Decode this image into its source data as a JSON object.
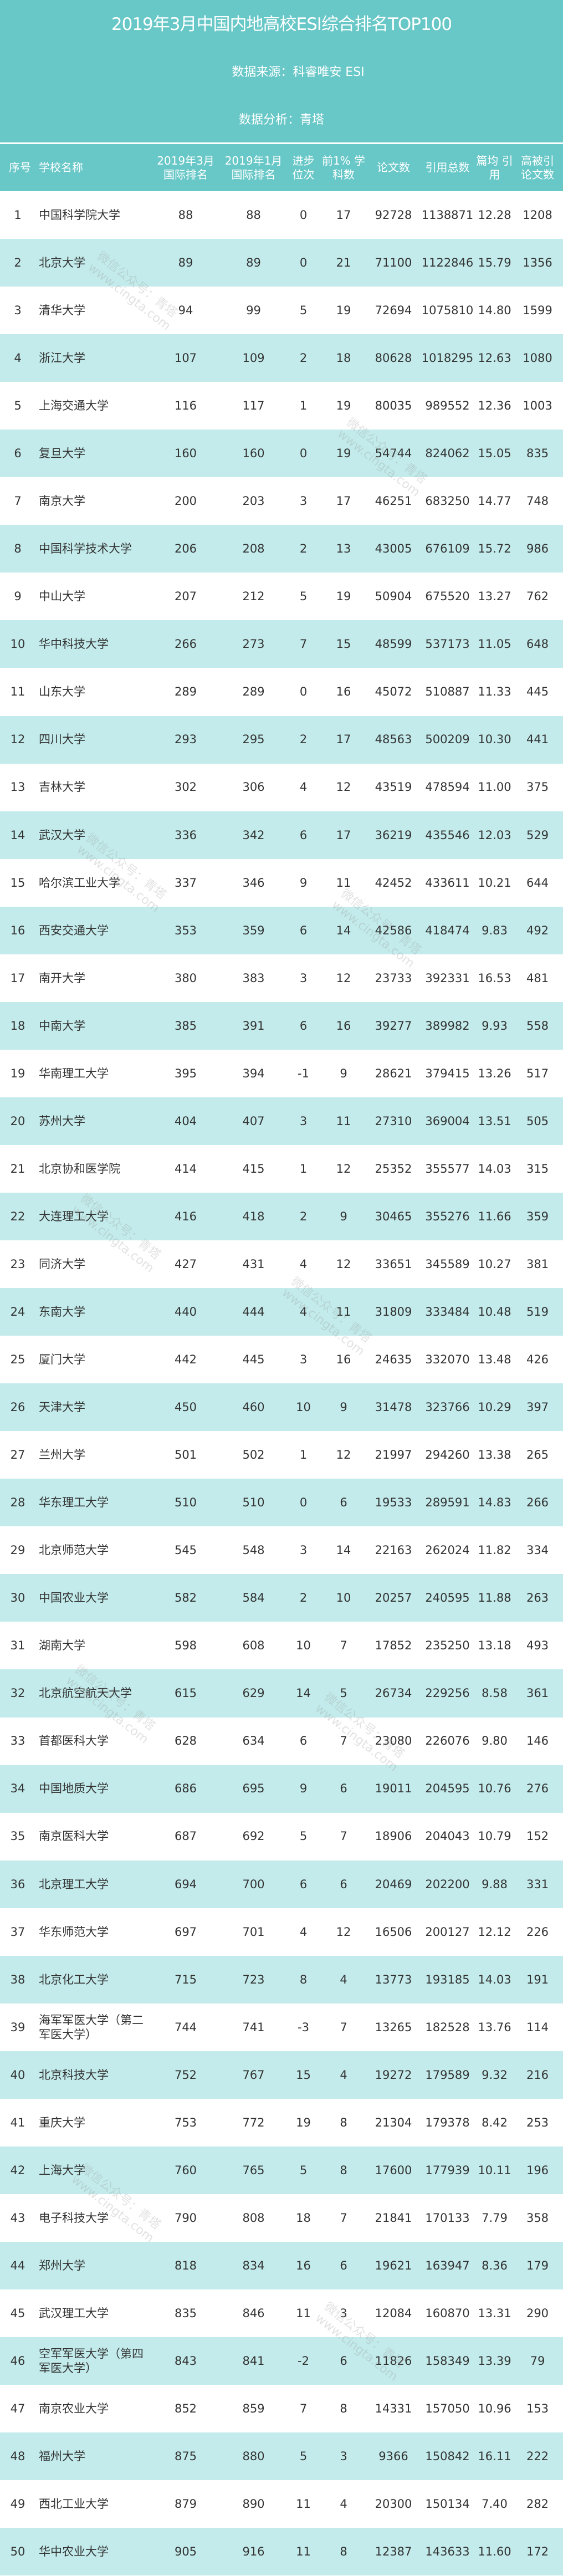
{
  "header": {
    "title": "2019年3月中国内地高校ESI综合排名TOP100",
    "source": "数据来源：科睿唯安 ESI",
    "analysis": "数据分析：青塔"
  },
  "colors": {
    "band": "#68C7C7",
    "row_alt": "#C3EBEB"
  },
  "watermark": [
    "微信公众号：青塔",
    "www.cingta.com"
  ],
  "columns": [
    "序号",
    "学校名称",
    "2019年3月 国际排名",
    "2019年1月 国际排名",
    "进步 位次",
    "前1% 学科数",
    "论文数",
    "引用总数",
    "篇均 引用",
    "高被引 论文数"
  ],
  "rows": [
    [
      "1",
      "中国科学院大学",
      "88",
      "88",
      "0",
      "17",
      "92728",
      "1138871",
      "12.28",
      "1208"
    ],
    [
      "2",
      "北京大学",
      "89",
      "89",
      "0",
      "21",
      "71100",
      "1122846",
      "15.79",
      "1356"
    ],
    [
      "3",
      "清华大学",
      "94",
      "99",
      "5",
      "19",
      "72694",
      "1075810",
      "14.80",
      "1599"
    ],
    [
      "4",
      "浙江大学",
      "107",
      "109",
      "2",
      "18",
      "80628",
      "1018295",
      "12.63",
      "1080"
    ],
    [
      "5",
      "上海交通大学",
      "116",
      "117",
      "1",
      "19",
      "80035",
      "989552",
      "12.36",
      "1003"
    ],
    [
      "6",
      "复旦大学",
      "160",
      "160",
      "0",
      "19",
      "54744",
      "824062",
      "15.05",
      "835"
    ],
    [
      "7",
      "南京大学",
      "200",
      "203",
      "3",
      "17",
      "46251",
      "683250",
      "14.77",
      "748"
    ],
    [
      "8",
      "中国科学技术大学",
      "206",
      "208",
      "2",
      "13",
      "43005",
      "676109",
      "15.72",
      "986"
    ],
    [
      "9",
      "中山大学",
      "207",
      "212",
      "5",
      "19",
      "50904",
      "675520",
      "13.27",
      "762"
    ],
    [
      "10",
      "华中科技大学",
      "266",
      "273",
      "7",
      "15",
      "48599",
      "537173",
      "11.05",
      "648"
    ],
    [
      "11",
      "山东大学",
      "289",
      "289",
      "0",
      "16",
      "45072",
      "510887",
      "11.33",
      "445"
    ],
    [
      "12",
      "四川大学",
      "293",
      "295",
      "2",
      "17",
      "48563",
      "500209",
      "10.30",
      "441"
    ],
    [
      "13",
      "吉林大学",
      "302",
      "306",
      "4",
      "12",
      "43519",
      "478594",
      "11.00",
      "375"
    ],
    [
      "14",
      "武汉大学",
      "336",
      "342",
      "6",
      "17",
      "36219",
      "435546",
      "12.03",
      "529"
    ],
    [
      "15",
      "哈尔滨工业大学",
      "337",
      "346",
      "9",
      "11",
      "42452",
      "433611",
      "10.21",
      "644"
    ],
    [
      "16",
      "西安交通大学",
      "353",
      "359",
      "6",
      "14",
      "42586",
      "418474",
      "9.83",
      "492"
    ],
    [
      "17",
      "南开大学",
      "380",
      "383",
      "3",
      "12",
      "23733",
      "392331",
      "16.53",
      "481"
    ],
    [
      "18",
      "中南大学",
      "385",
      "391",
      "6",
      "16",
      "39277",
      "389982",
      "9.93",
      "558"
    ],
    [
      "19",
      "华南理工大学",
      "395",
      "394",
      "-1",
      "9",
      "28621",
      "379415",
      "13.26",
      "517"
    ],
    [
      "20",
      "苏州大学",
      "404",
      "407",
      "3",
      "11",
      "27310",
      "369004",
      "13.51",
      "505"
    ],
    [
      "21",
      "北京协和医学院",
      "414",
      "415",
      "1",
      "12",
      "25352",
      "355577",
      "14.03",
      "315"
    ],
    [
      "22",
      "大连理工大学",
      "416",
      "418",
      "2",
      "9",
      "30465",
      "355276",
      "11.66",
      "359"
    ],
    [
      "23",
      "同济大学",
      "427",
      "431",
      "4",
      "12",
      "33651",
      "345589",
      "10.27",
      "381"
    ],
    [
      "24",
      "东南大学",
      "440",
      "444",
      "4",
      "11",
      "31809",
      "333484",
      "10.48",
      "519"
    ],
    [
      "25",
      "厦门大学",
      "442",
      "445",
      "3",
      "16",
      "24635",
      "332070",
      "13.48",
      "426"
    ],
    [
      "26",
      "天津大学",
      "450",
      "460",
      "10",
      "9",
      "31478",
      "323766",
      "10.29",
      "397"
    ],
    [
      "27",
      "兰州大学",
      "501",
      "502",
      "1",
      "12",
      "21997",
      "294260",
      "13.38",
      "265"
    ],
    [
      "28",
      "华东理工大学",
      "510",
      "510",
      "0",
      "6",
      "19533",
      "289591",
      "14.83",
      "266"
    ],
    [
      "29",
      "北京师范大学",
      "545",
      "548",
      "3",
      "14",
      "22163",
      "262024",
      "11.82",
      "334"
    ],
    [
      "30",
      "中国农业大学",
      "582",
      "584",
      "2",
      "10",
      "20257",
      "240595",
      "11.88",
      "263"
    ],
    [
      "31",
      "湖南大学",
      "598",
      "608",
      "10",
      "7",
      "17852",
      "235250",
      "13.18",
      "493"
    ],
    [
      "32",
      "北京航空航天大学",
      "615",
      "629",
      "14",
      "5",
      "26734",
      "229256",
      "8.58",
      "361"
    ],
    [
      "33",
      "首都医科大学",
      "628",
      "634",
      "6",
      "7",
      "23080",
      "226076",
      "9.80",
      "146"
    ],
    [
      "34",
      "中国地质大学",
      "686",
      "695",
      "9",
      "6",
      "19011",
      "204595",
      "10.76",
      "276"
    ],
    [
      "35",
      "南京医科大学",
      "687",
      "692",
      "5",
      "7",
      "18906",
      "204043",
      "10.79",
      "152"
    ],
    [
      "36",
      "北京理工大学",
      "694",
      "700",
      "6",
      "6",
      "20469",
      "202200",
      "9.88",
      "331"
    ],
    [
      "37",
      "华东师范大学",
      "697",
      "701",
      "4",
      "12",
      "16506",
      "200127",
      "12.12",
      "226"
    ],
    [
      "38",
      "北京化工大学",
      "715",
      "723",
      "8",
      "4",
      "13773",
      "193185",
      "14.03",
      "191"
    ],
    [
      "39",
      "海军军医大学（第二军医大学）",
      "744",
      "741",
      "-3",
      "7",
      "13265",
      "182528",
      "13.76",
      "114"
    ],
    [
      "40",
      "北京科技大学",
      "752",
      "767",
      "15",
      "4",
      "19272",
      "179589",
      "9.32",
      "216"
    ],
    [
      "41",
      "重庆大学",
      "753",
      "772",
      "19",
      "8",
      "21304",
      "179378",
      "8.42",
      "253"
    ],
    [
      "42",
      "上海大学",
      "760",
      "765",
      "5",
      "8",
      "17600",
      "177939",
      "10.11",
      "196"
    ],
    [
      "43",
      "电子科技大学",
      "790",
      "808",
      "18",
      "7",
      "21841",
      "170133",
      "7.79",
      "358"
    ],
    [
      "44",
      "郑州大学",
      "818",
      "834",
      "16",
      "6",
      "19621",
      "163947",
      "8.36",
      "179"
    ],
    [
      "45",
      "武汉理工大学",
      "835",
      "846",
      "11",
      "3",
      "12084",
      "160870",
      "13.31",
      "290"
    ],
    [
      "46",
      "空军军医大学（第四军医大学）",
      "843",
      "841",
      "-2",
      "6",
      "11826",
      "158349",
      "13.39",
      "79"
    ],
    [
      "47",
      "南京农业大学",
      "852",
      "859",
      "7",
      "8",
      "14331",
      "157050",
      "10.96",
      "153"
    ],
    [
      "48",
      "福州大学",
      "875",
      "880",
      "5",
      "3",
      "9366",
      "150842",
      "16.11",
      "222"
    ],
    [
      "49",
      "西北工业大学",
      "879",
      "890",
      "11",
      "4",
      "20300",
      "150134",
      "7.40",
      "282"
    ],
    [
      "50",
      "华中农业大学",
      "905",
      "916",
      "11",
      "8",
      "12387",
      "143633",
      "11.60",
      "172"
    ]
  ]
}
